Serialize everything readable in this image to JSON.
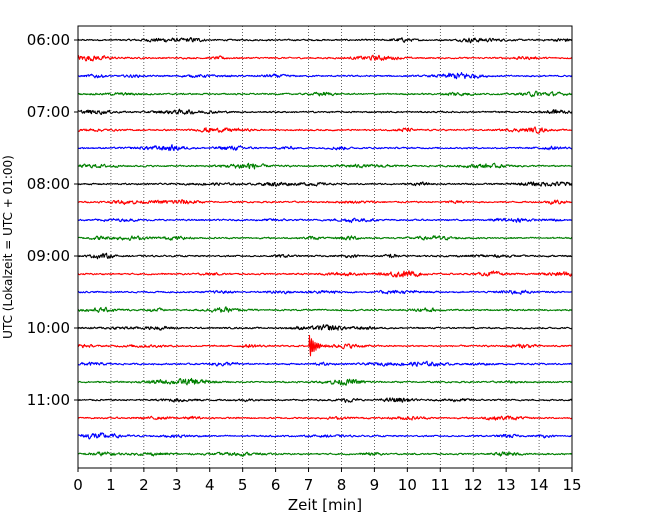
{
  "chart_data": {
    "type": "line",
    "title": "",
    "xlabel": "Zeit  [min]",
    "ylabel": "UTC (Lokalzeit = UTC + 01:00)",
    "xlim": [
      0,
      15
    ],
    "x_ticks": [
      0,
      1,
      2,
      3,
      4,
      5,
      6,
      7,
      8,
      9,
      10,
      11,
      12,
      13,
      14,
      15
    ],
    "y_tick_labels": [
      "06:00",
      "07:00",
      "08:00",
      "09:00",
      "10:00",
      "11:00"
    ],
    "grid": "vertical dotted",
    "trace_colors": [
      "#000000",
      "#ff0000",
      "#0000ff",
      "#008000"
    ],
    "traces": [
      {
        "start": "06:00",
        "event_at_min": null
      },
      {
        "start": "06:15",
        "event_at_min": null
      },
      {
        "start": "06:30",
        "event_at_min": null
      },
      {
        "start": "06:45",
        "event_at_min": null
      },
      {
        "start": "07:00",
        "event_at_min": null
      },
      {
        "start": "07:15",
        "event_at_min": null
      },
      {
        "start": "07:30",
        "event_at_min": null
      },
      {
        "start": "07:45",
        "event_at_min": null
      },
      {
        "start": "08:00",
        "event_at_min": null
      },
      {
        "start": "08:15",
        "event_at_min": null
      },
      {
        "start": "08:30",
        "event_at_min": null
      },
      {
        "start": "08:45",
        "event_at_min": null
      },
      {
        "start": "09:00",
        "event_at_min": null
      },
      {
        "start": "09:15",
        "event_at_min": null
      },
      {
        "start": "09:30",
        "event_at_min": null
      },
      {
        "start": "09:45",
        "event_at_min": null
      },
      {
        "start": "10:00",
        "event_at_min": null
      },
      {
        "start": "10:15",
        "event_at_min": 7.05
      },
      {
        "start": "10:30",
        "event_at_min": null
      },
      {
        "start": "10:45",
        "event_at_min": null
      },
      {
        "start": "11:00",
        "event_at_min": null
      },
      {
        "start": "11:15",
        "event_at_min": null
      },
      {
        "start": "11:30",
        "event_at_min": null
      },
      {
        "start": "11:45",
        "event_at_min": null
      }
    ]
  }
}
